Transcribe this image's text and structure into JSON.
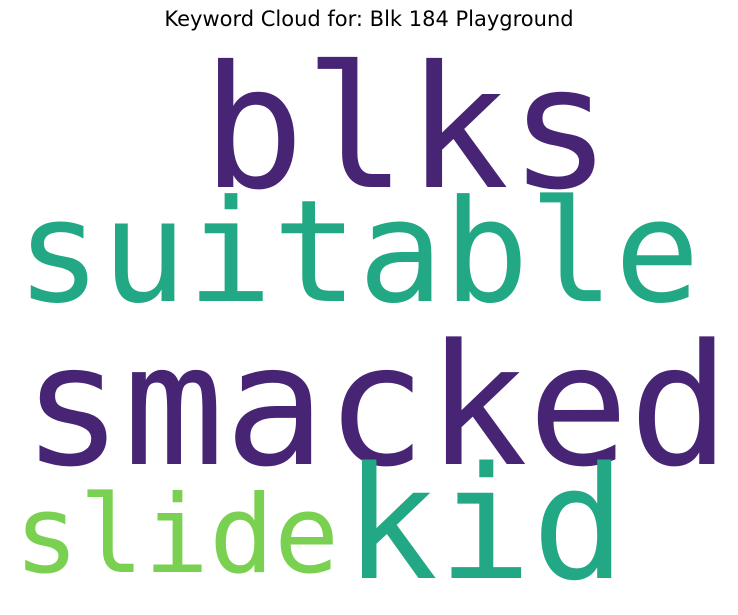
{
  "title": "Keyword Cloud for: Blk 184 Playground",
  "words": [
    {
      "text": "blks",
      "color": "#482475"
    },
    {
      "text": "suitable",
      "color": "#22a884"
    },
    {
      "text": "smacked",
      "color": "#482475"
    },
    {
      "text": "slide",
      "color": "#7ad151"
    },
    {
      "text": "kid",
      "color": "#22a884"
    }
  ]
}
